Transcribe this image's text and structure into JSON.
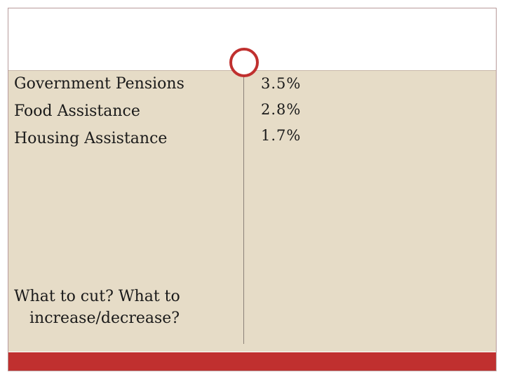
{
  "left_items": [
    "Government Pensions",
    "Food Assistance",
    "Housing Assistance"
  ],
  "values": [
    "3.5%",
    "2.8%",
    "1.7%"
  ],
  "question": {
    "line1": "What to cut? What to",
    "line2": "increase/decrease?"
  },
  "colors": {
    "accent": "#c0302f",
    "body_background": "#e6dcc7"
  }
}
